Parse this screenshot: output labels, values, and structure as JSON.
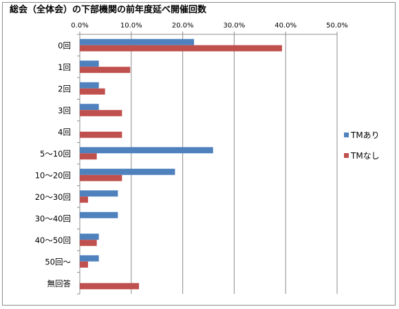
{
  "chart_data": {
    "type": "bar",
    "orientation": "horizontal",
    "title": "総会（全体会）の下部機関の前年度延べ開催回数",
    "categories": [
      "0回",
      "1回",
      "2回",
      "3回",
      "4回",
      "5～10回",
      "10～20回",
      "20～30回",
      "30～40回",
      "40～50回",
      "50回～",
      "無回答"
    ],
    "series": [
      {
        "name": "TMあり",
        "color": "#4f81bd",
        "values": [
          22.2,
          3.7,
          3.7,
          3.7,
          0.0,
          25.9,
          18.5,
          7.4,
          7.4,
          3.7,
          3.7,
          0.0
        ]
      },
      {
        "name": "TMなし",
        "color": "#c0504d",
        "values": [
          39.3,
          9.8,
          4.9,
          8.2,
          8.2,
          3.3,
          8.2,
          1.6,
          0.0,
          3.3,
          1.6,
          11.5
        ]
      }
    ],
    "xlim": [
      0,
      50
    ],
    "xticks": [
      "0.0%",
      "10.0%",
      "20.0%",
      "30.0%",
      "40.0%",
      "50.0%"
    ],
    "x_axis_position": "top",
    "grid": true,
    "legend_position": "right"
  }
}
